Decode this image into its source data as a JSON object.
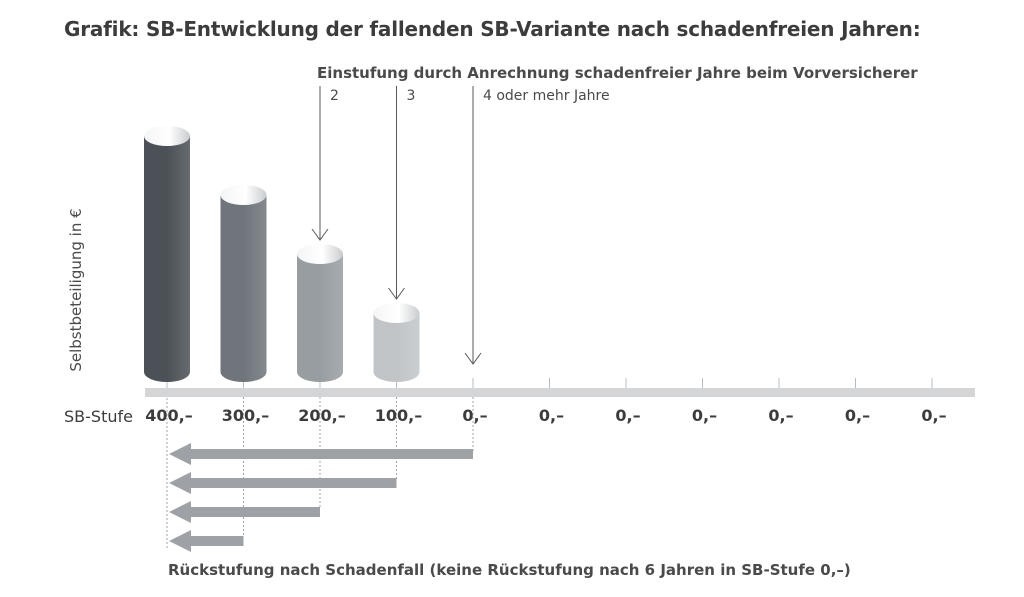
{
  "title": "Grafik: SB-Entwicklung der fallenden SB-Variante nach schadenfreien Jahren:",
  "einstufung_label": "Einstufung durch Anrechnung schadenfreier Jahre beim Vorversicherer",
  "entry_arrows": [
    {
      "label": "2",
      "target_stufe_index": 2
    },
    {
      "label": "3",
      "target_stufe_index": 3
    },
    {
      "label": "4  oder mehr Jahre",
      "target_stufe_index": 4
    }
  ],
  "ylabel": "Selbstbeteiligung in €",
  "xaxis_label": "SB-Stufe",
  "footnote": "Rückstufung nach Schadenfall (keine Rückstufung nach 6 Jahren in SB-Stufe 0,–)",
  "colors": {
    "bars": [
      "#4b5156",
      "#6f757b",
      "#979da1",
      "#c1c5c8"
    ],
    "axis": "#d4d5d6",
    "arrows": "#9ea2a6",
    "text": "#3c3c3c"
  },
  "chart_data": {
    "type": "bar",
    "style": "3d-cylinder",
    "categories": [
      "400,–",
      "300,–",
      "200,–",
      "100,–",
      "0,–",
      "0,–",
      "0,–",
      "0,–",
      "0,–",
      "0,–",
      "0,–"
    ],
    "values": [
      400,
      300,
      200,
      100,
      0,
      0,
      0,
      0,
      0,
      0,
      0
    ],
    "ylabel": "Selbstbeteiligung in €",
    "xlabel": "SB-Stufe",
    "ylim": [
      0,
      400
    ],
    "grid": false,
    "rueckstufung_arrows": [
      {
        "from_index": 4,
        "to_index": 0
      },
      {
        "from_index": 3,
        "to_index": 0
      },
      {
        "from_index": 2,
        "to_index": 0
      },
      {
        "from_index": 1,
        "to_index": 0
      }
    ]
  }
}
